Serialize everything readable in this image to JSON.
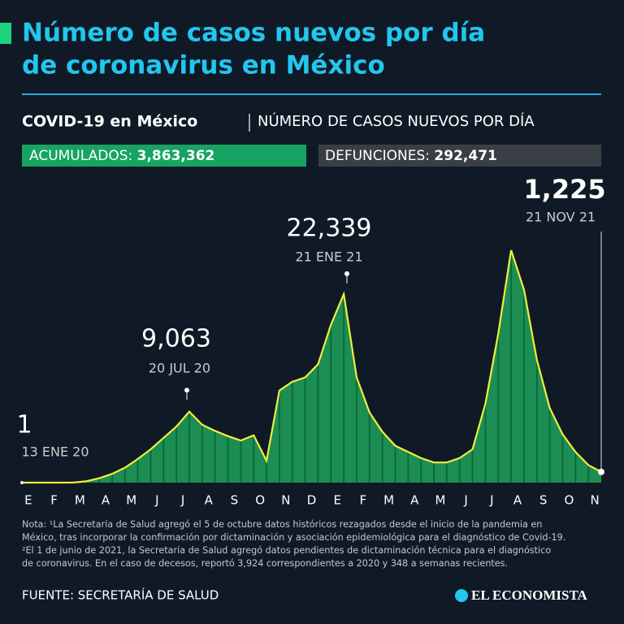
{
  "header": {
    "title_lines": [
      "Número de casos nuevos por día",
      "de coronavirus en México"
    ],
    "subtitle_bold": "COVID-19 en México",
    "subtitle": "NÚMERO DE CASOS NUEVOS POR DÍA"
  },
  "stats": [
    {
      "label": "ACUMULADOS:",
      "value": "3,863,362"
    },
    {
      "label": "DEFUNCIONES:",
      "value": "292,471"
    }
  ],
  "chart_data": {
    "type": "area",
    "line_color": "#f2ee3a",
    "fill_color": "#1fa35d",
    "categories": [
      "E",
      null,
      "F",
      null,
      "M",
      null,
      "A",
      null,
      "M",
      null,
      "J",
      null,
      "J",
      null,
      "A",
      null,
      "S",
      null,
      "O",
      null,
      "N",
      null,
      "D",
      null,
      "E",
      null,
      "F",
      null,
      "M",
      null,
      "A",
      null,
      "M",
      null,
      "J",
      null,
      "J",
      null,
      "A",
      null,
      "S",
      null,
      "O",
      null,
      "N",
      null
    ],
    "values": [
      0,
      0,
      0,
      0,
      10,
      150,
      500,
      1000,
      1700,
      2700,
      3800,
      5100,
      6400,
      8100,
      6600,
      5900,
      5300,
      4800,
      5400,
      2500,
      10500,
      11500,
      12000,
      13500,
      18000,
      21500,
      12000,
      8000,
      5800,
      4200,
      3500,
      2800,
      2300,
      2300,
      2800,
      3800,
      9000,
      17000,
      26500,
      22000,
      14000,
      8500,
      5500,
      3500,
      2000,
      1225
    ],
    "annotations": [
      {
        "value": 1,
        "label": "1",
        "date": "13 ENE 20"
      },
      {
        "value": 9063,
        "label": "9,063",
        "date": "20 JUL 20"
      },
      {
        "value": 22339,
        "label": "22,339",
        "date": "21 ENE 21"
      },
      {
        "value": 1225,
        "label": "1,225",
        "date": "21 NOV 21"
      }
    ]
  },
  "notes": [
    "Nota: ¹La Secretaría de Salud agregó el 5 de octubre datos históricos rezagados desde el inicio de la pandemia en",
    "México, tras incorporar la confirmación por dictaminación y asociación epidemiológica para el diagnóstico de Covid-19.",
    "²El 1 de junio de 2021, la Secretaría de Salud agregó datos pendientes de dictaminación técnica para el diagnóstico",
    "de coronavirus. En el caso de decesos, reportó 3,924 correspondientes a 2020 y 348 a semanas recientes."
  ],
  "source": "FUENTE: SECRETARÍA DE SALUD",
  "logo": "EL ECONOMISTA"
}
